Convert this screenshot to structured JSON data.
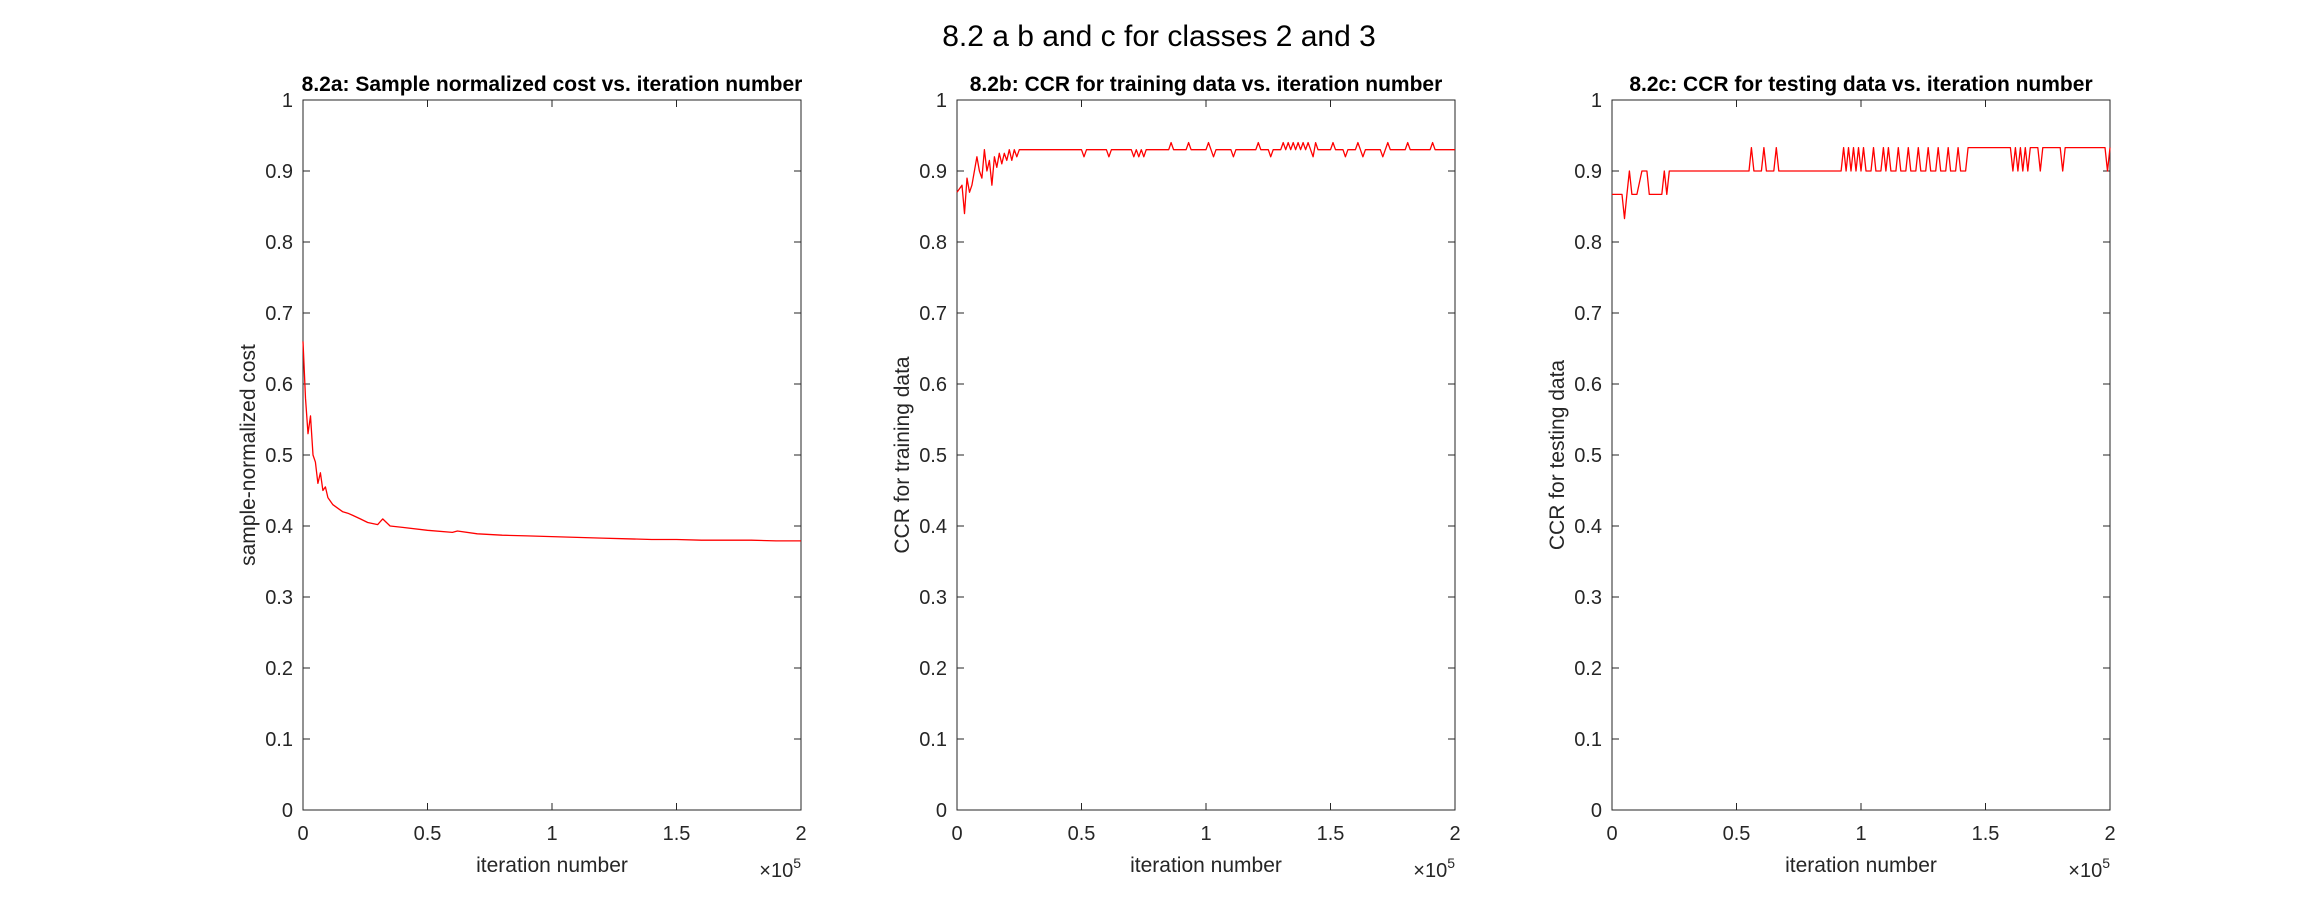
{
  "figure": {
    "suptitle": "8.2 a b and c for classes 2 and 3"
  },
  "chart_data": [
    {
      "type": "line",
      "title": "8.2a: Sample normalized cost vs. iteration number",
      "xlabel": "iteration number",
      "ylabel": "sample-normalized cost",
      "xlim": [
        0,
        2
      ],
      "ylim": [
        0,
        1
      ],
      "x_ticks": [
        "0",
        "0.5",
        "1",
        "1.5",
        "2"
      ],
      "y_ticks": [
        "0",
        "0.1",
        "0.2",
        "0.3",
        "0.4",
        "0.5",
        "0.6",
        "0.7",
        "0.8",
        "0.9",
        "1"
      ],
      "x_exponent": "×10^5",
      "color": "#ff0000",
      "series": [
        {
          "x": [
            0,
            0.01,
            0.02,
            0.03,
            0.04,
            0.05,
            0.06,
            0.07,
            0.08,
            0.09,
            0.1,
            0.12,
            0.14,
            0.16,
            0.18,
            0.2,
            0.23,
            0.26,
            0.3,
            0.32,
            0.35,
            0.4,
            0.5,
            0.6,
            0.62,
            0.7,
            0.8,
            0.9,
            1.0,
            1.1,
            1.2,
            1.3,
            1.4,
            1.5,
            1.6,
            1.7,
            1.8,
            1.9,
            2.0
          ],
          "values": [
            0.66,
            0.58,
            0.53,
            0.555,
            0.5,
            0.49,
            0.46,
            0.475,
            0.45,
            0.455,
            0.44,
            0.43,
            0.425,
            0.42,
            0.418,
            0.415,
            0.41,
            0.405,
            0.402,
            0.41,
            0.4,
            0.398,
            0.394,
            0.391,
            0.393,
            0.389,
            0.387,
            0.386,
            0.385,
            0.384,
            0.383,
            0.382,
            0.381,
            0.381,
            0.38,
            0.38,
            0.38,
            0.379,
            0.379
          ]
        }
      ]
    },
    {
      "type": "line",
      "title": "8.2b: CCR for training data vs. iteration number",
      "xlabel": "iteration number",
      "ylabel": "CCR for training data",
      "xlim": [
        0,
        2
      ],
      "ylim": [
        0,
        1
      ],
      "x_ticks": [
        "0",
        "0.5",
        "1",
        "1.5",
        "2"
      ],
      "y_ticks": [
        "0",
        "0.1",
        "0.2",
        "0.3",
        "0.4",
        "0.5",
        "0.6",
        "0.7",
        "0.8",
        "0.9",
        "1"
      ],
      "x_exponent": "×10^5",
      "color": "#ff0000",
      "series": [
        {
          "x": [
            0,
            0.02,
            0.03,
            0.04,
            0.05,
            0.06,
            0.08,
            0.09,
            0.1,
            0.11,
            0.12,
            0.13,
            0.14,
            0.15,
            0.16,
            0.17,
            0.18,
            0.19,
            0.2,
            0.21,
            0.22,
            0.23,
            0.24,
            0.25,
            0.3,
            0.5,
            0.51,
            0.52,
            0.6,
            0.61,
            0.62,
            0.7,
            0.71,
            0.72,
            0.73,
            0.74,
            0.75,
            0.76,
            0.85,
            0.86,
            0.87,
            0.92,
            0.93,
            0.94,
            1.0,
            1.01,
            1.02,
            1.03,
            1.04,
            1.05,
            1.1,
            1.11,
            1.12,
            1.2,
            1.21,
            1.22,
            1.25,
            1.26,
            1.27,
            1.3,
            1.31,
            1.32,
            1.33,
            1.34,
            1.35,
            1.36,
            1.37,
            1.38,
            1.39,
            1.4,
            1.41,
            1.42,
            1.43,
            1.44,
            1.45,
            1.5,
            1.51,
            1.52,
            1.55,
            1.56,
            1.57,
            1.6,
            1.61,
            1.62,
            1.63,
            1.64,
            1.7,
            1.71,
            1.72,
            1.73,
            1.74,
            1.8,
            1.81,
            1.82,
            1.9,
            1.91,
            1.92,
            1.95,
            1.96,
            2.0
          ],
          "values": [
            0.87,
            0.88,
            0.84,
            0.89,
            0.87,
            0.88,
            0.92,
            0.9,
            0.89,
            0.93,
            0.9,
            0.915,
            0.88,
            0.92,
            0.905,
            0.925,
            0.91,
            0.925,
            0.915,
            0.93,
            0.915,
            0.93,
            0.92,
            0.93,
            0.93,
            0.93,
            0.92,
            0.93,
            0.93,
            0.92,
            0.93,
            0.93,
            0.92,
            0.93,
            0.92,
            0.93,
            0.92,
            0.93,
            0.93,
            0.94,
            0.93,
            0.93,
            0.94,
            0.93,
            0.93,
            0.94,
            0.93,
            0.92,
            0.93,
            0.93,
            0.93,
            0.92,
            0.93,
            0.93,
            0.94,
            0.93,
            0.93,
            0.92,
            0.93,
            0.93,
            0.94,
            0.93,
            0.94,
            0.93,
            0.94,
            0.93,
            0.94,
            0.93,
            0.94,
            0.93,
            0.94,
            0.93,
            0.92,
            0.94,
            0.93,
            0.93,
            0.94,
            0.93,
            0.93,
            0.92,
            0.93,
            0.93,
            0.94,
            0.93,
            0.92,
            0.93,
            0.93,
            0.92,
            0.93,
            0.94,
            0.93,
            0.93,
            0.94,
            0.93,
            0.93,
            0.94,
            0.93,
            0.93,
            0.93,
            0.93
          ]
        }
      ]
    },
    {
      "type": "line",
      "title": "8.2c: CCR for testing data vs. iteration number",
      "xlabel": "iteration number",
      "ylabel": "CCR for testing data",
      "xlim": [
        0,
        2
      ],
      "ylim": [
        0,
        1
      ],
      "x_ticks": [
        "0",
        "0.5",
        "1",
        "1.5",
        "2"
      ],
      "y_ticks": [
        "0",
        "0.1",
        "0.2",
        "0.3",
        "0.4",
        "0.5",
        "0.6",
        "0.7",
        "0.8",
        "0.9",
        "1"
      ],
      "x_exponent": "×10^5",
      "color": "#ff0000",
      "series": [
        {
          "x": [
            0,
            0.04,
            0.05,
            0.06,
            0.07,
            0.08,
            0.09,
            0.1,
            0.12,
            0.14,
            0.15,
            0.16,
            0.18,
            0.2,
            0.21,
            0.22,
            0.23,
            0.24,
            0.55,
            0.56,
            0.57,
            0.6,
            0.61,
            0.62,
            0.65,
            0.66,
            0.67,
            0.92,
            0.93,
            0.94,
            0.95,
            0.96,
            0.97,
            0.98,
            0.99,
            1.0,
            1.01,
            1.02,
            1.04,
            1.05,
            1.06,
            1.08,
            1.09,
            1.1,
            1.11,
            1.12,
            1.14,
            1.15,
            1.16,
            1.18,
            1.19,
            1.2,
            1.22,
            1.23,
            1.24,
            1.26,
            1.27,
            1.28,
            1.3,
            1.31,
            1.32,
            1.34,
            1.35,
            1.36,
            1.38,
            1.39,
            1.4,
            1.42,
            1.43,
            1.44,
            1.46,
            1.47,
            1.48,
            1.5,
            1.51,
            1.52,
            1.53,
            1.54,
            1.56,
            1.57,
            1.58,
            1.6,
            1.61,
            1.62,
            1.63,
            1.64,
            1.65,
            1.66,
            1.67,
            1.68,
            1.7,
            1.71,
            1.72,
            1.73,
            1.74,
            1.75,
            1.76,
            1.8,
            1.81,
            1.82,
            1.98,
            1.99,
            2.0
          ],
          "values": [
            0.867,
            0.867,
            0.833,
            0.867,
            0.9,
            0.867,
            0.867,
            0.867,
            0.9,
            0.9,
            0.867,
            0.867,
            0.867,
            0.867,
            0.9,
            0.867,
            0.9,
            0.9,
            0.9,
            0.933,
            0.9,
            0.9,
            0.933,
            0.9,
            0.9,
            0.933,
            0.9,
            0.9,
            0.933,
            0.9,
            0.933,
            0.9,
            0.933,
            0.9,
            0.933,
            0.9,
            0.933,
            0.9,
            0.9,
            0.933,
            0.9,
            0.9,
            0.933,
            0.9,
            0.933,
            0.9,
            0.9,
            0.933,
            0.9,
            0.9,
            0.933,
            0.9,
            0.9,
            0.933,
            0.9,
            0.9,
            0.933,
            0.9,
            0.9,
            0.933,
            0.9,
            0.9,
            0.933,
            0.9,
            0.9,
            0.933,
            0.9,
            0.9,
            0.933,
            0.933,
            0.933,
            0.933,
            0.933,
            0.933,
            0.933,
            0.933,
            0.933,
            0.933,
            0.933,
            0.933,
            0.933,
            0.933,
            0.9,
            0.933,
            0.9,
            0.933,
            0.9,
            0.933,
            0.9,
            0.933,
            0.933,
            0.933,
            0.9,
            0.933,
            0.933,
            0.933,
            0.933,
            0.933,
            0.9,
            0.933,
            0.933,
            0.9,
            0.933
          ]
        }
      ]
    }
  ]
}
